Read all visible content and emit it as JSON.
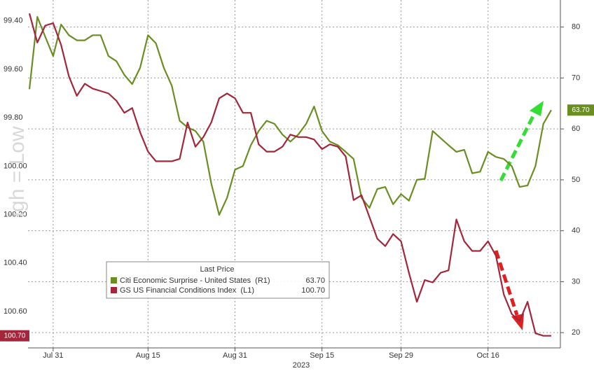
{
  "chart_data": {
    "type": "line",
    "watermark": "igh = Low",
    "x_group_label": "2023",
    "categories": [
      null,
      null,
      null,
      "Jul 31",
      null,
      null,
      null,
      null,
      null,
      null,
      null,
      null,
      null,
      null,
      null,
      "Aug 15",
      null,
      null,
      null,
      null,
      null,
      null,
      null,
      null,
      null,
      null,
      "Aug 31",
      null,
      null,
      null,
      null,
      null,
      null,
      null,
      null,
      null,
      null,
      "Sep 15",
      null,
      null,
      null,
      null,
      null,
      null,
      null,
      null,
      null,
      "Sep 29",
      null,
      null,
      null,
      null,
      null,
      null,
      null,
      null,
      null,
      null,
      "Oct 16",
      null,
      null,
      null,
      null,
      null,
      null,
      null,
      null
    ],
    "ylim": [
      100.75,
      99.3
    ],
    "yticks": [
      {
        "value": 99.4,
        "label": "99.40"
      },
      {
        "value": 99.6,
        "label": "99.60"
      },
      {
        "value": 99.8,
        "label": "99.80"
      },
      {
        "value": 100.0,
        "label": "100.00"
      },
      {
        "value": 100.2,
        "label": "100.20"
      },
      {
        "value": 100.4,
        "label": "100.40"
      },
      {
        "value": 100.6,
        "label": "100.60"
      }
    ],
    "y2lim": [
      17,
      86
    ],
    "y2ticks": [
      20,
      30,
      40,
      50,
      60,
      70,
      80
    ],
    "grid": true,
    "legend": {
      "title": "Last Price",
      "position": "lower-left"
    },
    "series": [
      {
        "name": "Citi Economic Surprise - United States  (R1)",
        "color": "#6b8e23",
        "axis": "y2",
        "last_price": {
          "value": 63.7,
          "label": "63.70"
        },
        "values": [
          67.8,
          82.0,
          78.1,
          74.3,
          80.5,
          78.4,
          77.4,
          77.4,
          78.4,
          78.4,
          74.3,
          73.3,
          70.6,
          68.8,
          72.0,
          78.4,
          76.8,
          72.0,
          68.5,
          61.6,
          60.3,
          59.6,
          57.5,
          49.3,
          43.1,
          46.5,
          52.0,
          52.7,
          56.8,
          59.6,
          61.6,
          61.0,
          58.9,
          57.5,
          58.9,
          61.0,
          64.4,
          59.6,
          57.5,
          56.8,
          55.5,
          54.1,
          46.5,
          44.5,
          48.2,
          48.6,
          45.2,
          47.2,
          45.9,
          50.0,
          50.2,
          59.6,
          58.2,
          56.8,
          55.5,
          55.9,
          51.3,
          51.6,
          55.5,
          54.5,
          54.1,
          52.7,
          48.6,
          48.9,
          52.7,
          61.0,
          63.7
        ]
      },
      {
        "name": "GS US Financial Conditions Index  (L1)",
        "color": "#a3263a",
        "last_price": {
          "value": 100.7,
          "label": "100.70"
        },
        "values": [
          99.37,
          99.49,
          99.42,
          99.41,
          99.5,
          99.63,
          99.71,
          99.66,
          99.68,
          99.69,
          99.7,
          99.73,
          99.78,
          99.76,
          99.86,
          99.94,
          99.98,
          99.98,
          99.98,
          99.97,
          99.82,
          99.92,
          99.88,
          99.82,
          99.72,
          99.7,
          99.72,
          99.78,
          99.78,
          99.91,
          99.94,
          99.94,
          99.92,
          99.87,
          99.88,
          99.88,
          99.89,
          99.93,
          99.91,
          99.92,
          99.96,
          100.14,
          100.12,
          100.21,
          100.3,
          100.33,
          100.28,
          100.31,
          100.44,
          100.56,
          100.47,
          100.48,
          100.44,
          100.43,
          100.22,
          100.31,
          100.35,
          100.35,
          100.31,
          100.37,
          100.53,
          100.61,
          100.64,
          100.56,
          100.69,
          100.7,
          100.7
        ]
      }
    ]
  }
}
